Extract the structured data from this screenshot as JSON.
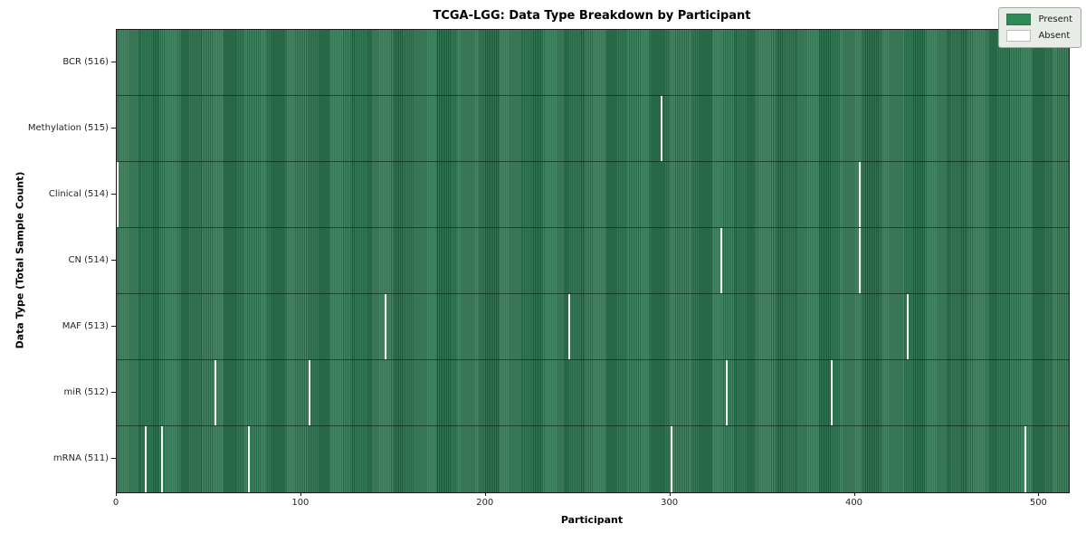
{
  "chart_data": {
    "type": "heatmap",
    "title": "TCGA-LGG: Data Type Breakdown by Participant",
    "xlabel": "Participant",
    "ylabel": "Data Type (Total Sample Count)",
    "x_ticks": [
      0,
      100,
      200,
      300,
      400,
      500
    ],
    "x_range": [
      0,
      516
    ],
    "n_participants": 516,
    "present_color": "#2e8b57",
    "absent_color": "#ffffff",
    "grid": false,
    "legend": {
      "position": "upper right",
      "entries": [
        {
          "label": "Present",
          "color": "#2e8b57"
        },
        {
          "label": "Absent",
          "color": "#ffffff"
        }
      ]
    },
    "rows": [
      {
        "label": "BCR (516)",
        "data_type": "BCR",
        "sample_count": 516,
        "absent_participants": []
      },
      {
        "label": "Methylation (515)",
        "data_type": "Methylation",
        "sample_count": 515,
        "absent_participants": [
          295
        ]
      },
      {
        "label": "Clinical (514)",
        "data_type": "Clinical",
        "sample_count": 514,
        "absent_participants": [
          0,
          402
        ]
      },
      {
        "label": "CN (514)",
        "data_type": "CN",
        "sample_count": 514,
        "absent_participants": [
          327,
          402
        ]
      },
      {
        "label": "MAF (513)",
        "data_type": "MAF",
        "sample_count": 513,
        "absent_participants": [
          145,
          245,
          428
        ]
      },
      {
        "label": "miR (512)",
        "data_type": "miR",
        "sample_count": 512,
        "absent_participants": [
          53,
          104,
          330,
          387
        ]
      },
      {
        "label": "mRNA (511)",
        "data_type": "mRNA",
        "sample_count": 511,
        "absent_participants": [
          15,
          24,
          71,
          300,
          492
        ]
      }
    ]
  }
}
